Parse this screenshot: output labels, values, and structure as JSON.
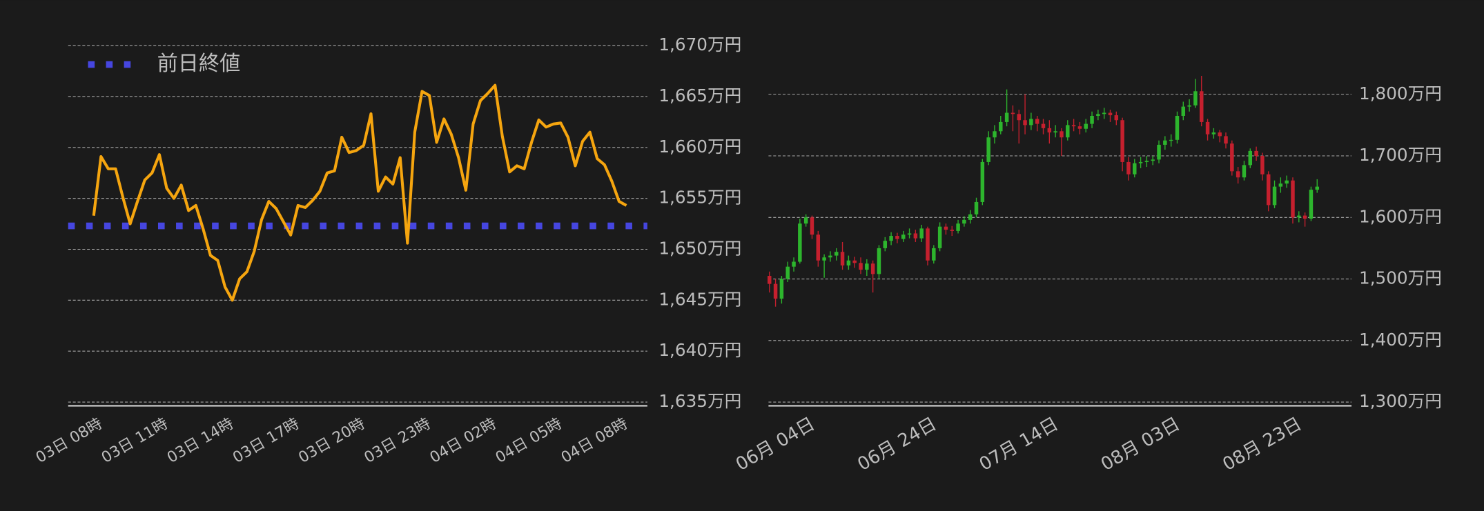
{
  "chart_data": [
    {
      "type": "line",
      "legend": "upper left",
      "grid": true,
      "categories": [
        "03日 08時",
        null,
        null,
        null,
        null,
        null,
        null,
        null,
        null,
        "03日 11時",
        null,
        null,
        null,
        null,
        null,
        null,
        null,
        null,
        "03日 14時",
        null,
        null,
        null,
        null,
        null,
        null,
        null,
        null,
        "03日 17時",
        null,
        null,
        null,
        null,
        null,
        null,
        null,
        null,
        "03日 20時",
        null,
        null,
        null,
        null,
        null,
        null,
        null,
        null,
        "03日 23時",
        null,
        null,
        null,
        null,
        null,
        null,
        null,
        null,
        "04日 02時",
        null,
        null,
        null,
        null,
        null,
        null,
        null,
        null,
        "04日 05時",
        null,
        null,
        null,
        null,
        null,
        null,
        null,
        null,
        "04日 08時",
        null
      ],
      "series": [
        {
          "color": "#f5a50f",
          "values": [
            1653.3,
            1659.1,
            1657.9,
            1657.9,
            1655.1,
            1652.5,
            1654.7,
            1656.8,
            1657.5,
            1659.3,
            1656.0,
            1655.0,
            1656.3,
            1653.8,
            1654.3,
            1652.0,
            1649.4,
            1648.9,
            1646.3,
            1645.0,
            1647.1,
            1647.8,
            1649.8,
            1652.9,
            1654.7,
            1654.0,
            1652.7,
            1651.4,
            1654.3,
            1654.1,
            1654.8,
            1655.7,
            1657.5,
            1657.7,
            1661.0,
            1659.5,
            1659.7,
            1660.2,
            1663.3,
            1655.7,
            1657.1,
            1656.4,
            1659.0,
            1650.6,
            1661.5,
            1665.5,
            1665.1,
            1660.5,
            1662.8,
            1661.3,
            1659.0,
            1655.8,
            1662.3,
            1664.6,
            1665.3,
            1666.1,
            1661.1,
            1657.6,
            1658.2,
            1657.9,
            1660.5,
            1662.7,
            1662.0,
            1662.3,
            1662.4,
            1661.0,
            1658.2,
            1660.6,
            1661.5,
            1658.9,
            1658.3,
            1656.7,
            1654.7,
            1654.3
          ]
        }
      ],
      "reference_lines": [
        {
          "name": "前日終値",
          "value": 1652.3,
          "color": "#4646e0"
        }
      ],
      "ylim": [
        1635,
        1670
      ],
      "yticks": [
        {
          "value": 1635,
          "label": "1,635万円"
        },
        {
          "value": 1640,
          "label": "1,640万円"
        },
        {
          "value": 1645,
          "label": "1,645万円"
        },
        {
          "value": 1650,
          "label": "1,650万円"
        },
        {
          "value": 1655,
          "label": "1,655万円"
        },
        {
          "value": 1660,
          "label": "1,660万円"
        },
        {
          "value": 1665,
          "label": "1,665万円"
        },
        {
          "value": 1670,
          "label": "1,670万円"
        }
      ]
    },
    {
      "type": "candlestick",
      "grid": true,
      "up_color": "#2db52d",
      "down_color": "#c5202e",
      "categories": [
        null,
        null,
        null,
        null,
        null,
        null,
        "06月 04日",
        null,
        null,
        null,
        null,
        null,
        null,
        null,
        null,
        null,
        null,
        null,
        null,
        null,
        null,
        null,
        null,
        null,
        null,
        null,
        "06月 24日",
        null,
        null,
        null,
        null,
        null,
        null,
        null,
        null,
        null,
        null,
        null,
        null,
        null,
        null,
        null,
        null,
        null,
        null,
        null,
        "07月 14日",
        null,
        null,
        null,
        null,
        null,
        null,
        null,
        null,
        null,
        null,
        null,
        null,
        null,
        null,
        null,
        null,
        null,
        null,
        null,
        "08月 03日",
        null,
        null,
        null,
        null,
        null,
        null,
        null,
        null,
        null,
        null,
        null,
        null,
        null,
        null,
        null,
        null,
        null,
        null,
        null,
        "08月 23日",
        null,
        null,
        null,
        null
      ],
      "open": [
        1505,
        1492,
        1468,
        1500,
        1520,
        1528,
        1590,
        1600,
        1572,
        1530,
        1535,
        1538,
        1544,
        1522,
        1530,
        1526,
        1515,
        1525,
        1508,
        1550,
        1562,
        1570,
        1565,
        1572,
        1574,
        1566,
        1582,
        1530,
        1550,
        1585,
        1580,
        1578,
        1590,
        1596,
        1605,
        1625,
        1690,
        1730,
        1740,
        1755,
        1770,
        1768,
        1758,
        1750,
        1760,
        1752,
        1745,
        1738,
        1740,
        1730,
        1750,
        1748,
        1744,
        1752,
        1765,
        1768,
        1770,
        1766,
        1758,
        1690,
        1670,
        1688,
        1690,
        1692,
        1694,
        1718,
        1725,
        1726,
        1765,
        1780,
        1782,
        1805,
        1755,
        1735,
        1738,
        1732,
        1720,
        1675,
        1665,
        1685,
        1708,
        1700,
        1670,
        1620,
        1650,
        1655,
        1660,
        1600,
        1603,
        1598,
        1645
      ],
      "high": [
        1512,
        1500,
        1505,
        1528,
        1535,
        1598,
        1605,
        1603,
        1578,
        1540,
        1545,
        1550,
        1560,
        1538,
        1536,
        1535,
        1532,
        1530,
        1555,
        1568,
        1576,
        1575,
        1578,
        1582,
        1580,
        1588,
        1585,
        1555,
        1592,
        1590,
        1586,
        1596,
        1602,
        1612,
        1632,
        1695,
        1740,
        1750,
        1765,
        1808,
        1782,
        1775,
        1800,
        1770,
        1765,
        1760,
        1758,
        1750,
        1745,
        1758,
        1760,
        1755,
        1760,
        1772,
        1775,
        1778,
        1775,
        1772,
        1762,
        1698,
        1695,
        1698,
        1700,
        1700,
        1725,
        1732,
        1735,
        1772,
        1788,
        1792,
        1825,
        1830,
        1760,
        1745,
        1742,
        1738,
        1725,
        1682,
        1692,
        1712,
        1715,
        1705,
        1675,
        1660,
        1665,
        1668,
        1665,
        1610,
        1608,
        1650,
        1662
      ],
      "low": [
        1478,
        1455,
        1460,
        1495,
        1512,
        1525,
        1585,
        1565,
        1520,
        1502,
        1528,
        1530,
        1515,
        1515,
        1518,
        1508,
        1505,
        1478,
        1500,
        1545,
        1555,
        1558,
        1560,
        1566,
        1560,
        1560,
        1522,
        1525,
        1545,
        1572,
        1570,
        1574,
        1585,
        1590,
        1600,
        1620,
        1685,
        1720,
        1735,
        1748,
        1740,
        1720,
        1735,
        1742,
        1740,
        1735,
        1720,
        1730,
        1700,
        1725,
        1740,
        1735,
        1738,
        1745,
        1758,
        1760,
        1755,
        1750,
        1675,
        1660,
        1665,
        1680,
        1682,
        1685,
        1688,
        1710,
        1715,
        1720,
        1758,
        1772,
        1778,
        1748,
        1725,
        1728,
        1722,
        1712,
        1668,
        1655,
        1660,
        1680,
        1692,
        1660,
        1610,
        1615,
        1640,
        1648,
        1590,
        1592,
        1585,
        1594,
        1640
      ],
      "close": [
        1492,
        1468,
        1500,
        1520,
        1528,
        1590,
        1600,
        1572,
        1530,
        1535,
        1538,
        1544,
        1522,
        1530,
        1526,
        1515,
        1525,
        1508,
        1550,
        1562,
        1570,
        1565,
        1572,
        1574,
        1566,
        1582,
        1530,
        1550,
        1585,
        1580,
        1578,
        1590,
        1596,
        1605,
        1625,
        1690,
        1730,
        1740,
        1755,
        1770,
        1768,
        1758,
        1750,
        1760,
        1752,
        1745,
        1738,
        1740,
        1730,
        1750,
        1748,
        1744,
        1752,
        1765,
        1768,
        1770,
        1766,
        1758,
        1690,
        1670,
        1688,
        1690,
        1692,
        1694,
        1718,
        1725,
        1726,
        1765,
        1780,
        1782,
        1805,
        1755,
        1735,
        1738,
        1732,
        1720,
        1675,
        1665,
        1685,
        1708,
        1700,
        1670,
        1620,
        1650,
        1655,
        1660,
        1600,
        1603,
        1598,
        1645,
        1650
      ],
      "ylim": [
        1300,
        1830
      ],
      "yticks": [
        {
          "value": 1300,
          "label": "1,300万円"
        },
        {
          "value": 1400,
          "label": "1,400万円"
        },
        {
          "value": 1500,
          "label": "1,500万円"
        },
        {
          "value": 1600,
          "label": "1,600万円"
        },
        {
          "value": 1700,
          "label": "1,700万円"
        },
        {
          "value": 1800,
          "label": "1,800万円"
        }
      ]
    }
  ]
}
